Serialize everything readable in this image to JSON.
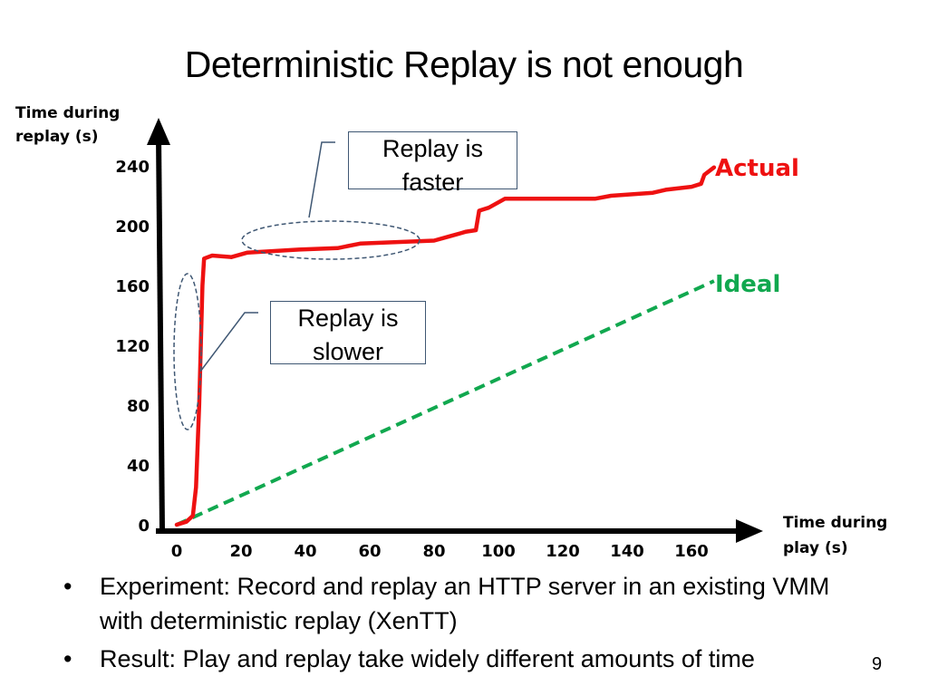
{
  "slide": {
    "title": "Deterministic Replay is not enough",
    "page_number": "9",
    "bullets": [
      "Experiment: Record and replay an HTTP server in an existing VMM with deterministic replay (XenTT)",
      "Result: Play and replay take widely different amounts of time"
    ],
    "callouts": {
      "faster": "Replay is faster",
      "slower": "Replay is slower"
    }
  },
  "chart_data": {
    "type": "line",
    "title": "",
    "xlabel": "Time during play (s)",
    "ylabel": "Time during replay (s)",
    "xlim": [
      0,
      165
    ],
    "ylim": [
      0,
      250
    ],
    "x_ticks": [
      0,
      20,
      40,
      60,
      80,
      100,
      120,
      140,
      160
    ],
    "y_ticks": [
      0,
      40,
      80,
      120,
      160,
      200,
      240
    ],
    "grid": false,
    "colors": {
      "actual": "#ee1111",
      "ideal": "#11a84f"
    },
    "series": [
      {
        "name": "Actual",
        "points": [
          [
            0,
            0
          ],
          [
            3,
            2
          ],
          [
            5,
            6
          ],
          [
            6,
            25
          ],
          [
            7,
            80
          ],
          [
            8,
            160
          ],
          [
            8.5,
            178
          ],
          [
            11,
            180
          ],
          [
            17,
            179
          ],
          [
            22,
            182
          ],
          [
            38,
            184
          ],
          [
            50,
            185
          ],
          [
            57,
            188
          ],
          [
            80,
            190
          ],
          [
            85,
            193
          ],
          [
            90,
            196
          ],
          [
            93,
            197
          ],
          [
            94,
            210
          ],
          [
            97,
            212
          ],
          [
            102,
            218
          ],
          [
            115,
            218
          ],
          [
            130,
            218
          ],
          [
            135,
            220
          ],
          [
            148,
            222
          ],
          [
            152,
            224
          ],
          [
            160,
            226
          ],
          [
            163,
            228
          ],
          [
            164,
            234
          ],
          [
            167,
            239
          ]
        ]
      },
      {
        "name": "Ideal",
        "points": [
          [
            0,
            0
          ],
          [
            167,
            163
          ]
        ]
      }
    ]
  }
}
